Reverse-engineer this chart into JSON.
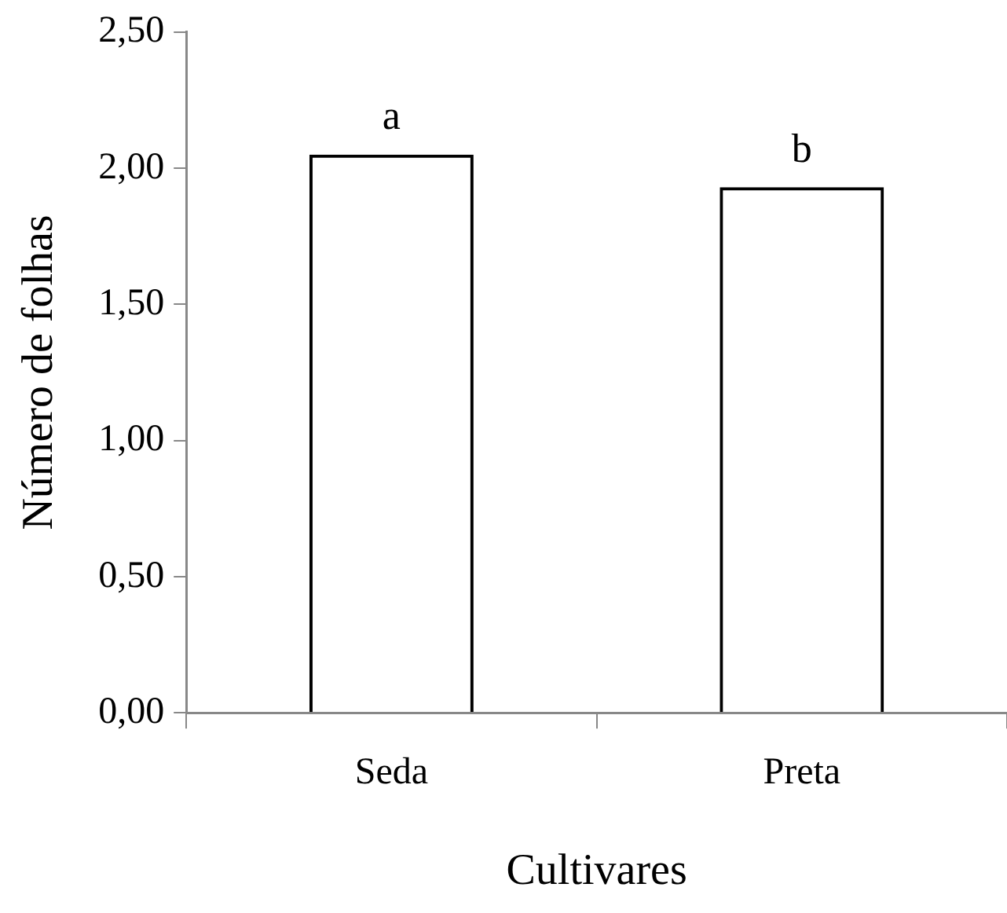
{
  "chart_data": {
    "type": "bar",
    "xlabel": "Cultivares",
    "ylabel": "Número de folhas",
    "categories": [
      "Seda",
      "Preta"
    ],
    "values": [
      2.05,
      1.93
    ],
    "color": "#000000",
    "ylim": [
      0,
      2.5
    ],
    "yticks": [
      {
        "value": 0,
        "label": "0,00"
      },
      {
        "value": 0.5,
        "label": "0,50"
      },
      {
        "value": 1,
        "label": "1,00"
      },
      {
        "value": 1.5,
        "label": "1,50"
      },
      {
        "value": 2,
        "label": "2,00"
      },
      {
        "value": 2.5,
        "label": "2,50"
      }
    ],
    "grid": false,
    "legend": false,
    "annotations": [
      {
        "text": "a",
        "x": "Seda",
        "y": 2.05
      },
      {
        "text": "b",
        "x": "Preta",
        "y": 1.93
      }
    ]
  }
}
